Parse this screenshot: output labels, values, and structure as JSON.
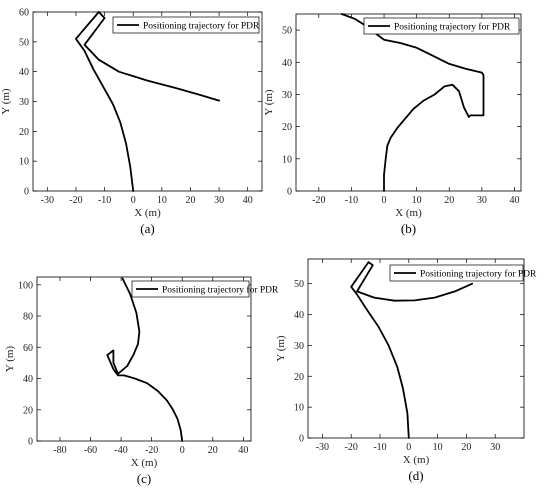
{
  "chart_data": [
    {
      "panel": "(a)",
      "type": "line",
      "xlabel": "X (m)",
      "ylabel": "Y (m)",
      "xlim": [
        -35,
        45
      ],
      "ylim": [
        0,
        60
      ],
      "xticks": [
        -30,
        -20,
        -10,
        0,
        10,
        20,
        30,
        40
      ],
      "yticks": [
        0,
        10,
        20,
        30,
        40,
        50,
        60
      ],
      "legend": {
        "position": "top-right",
        "entries": [
          "Positioning trajectory for PDR"
        ]
      },
      "series": [
        {
          "name": "Positioning trajectory for PDR",
          "x": [
            0,
            -1,
            -2.5,
            -4.5,
            -7,
            -10.5,
            -14,
            -17,
            -20,
            -12,
            -10,
            -17,
            -12,
            -5,
            5,
            15,
            23,
            30
          ],
          "y": [
            0,
            8,
            16,
            23,
            29,
            35,
            41,
            47,
            51,
            60,
            58,
            49,
            44,
            40,
            37,
            34.5,
            32.3,
            30.3
          ]
        }
      ]
    },
    {
      "panel": "(b)",
      "type": "line",
      "xlabel": "X (m)",
      "ylabel": "Y (m)",
      "xlim": [
        -27,
        42
      ],
      "ylim": [
        0,
        55
      ],
      "xticks": [
        -20,
        -10,
        0,
        10,
        20,
        30,
        40
      ],
      "yticks": [
        0,
        10,
        20,
        30,
        40,
        50
      ],
      "legend": {
        "position": "top-right",
        "entries": [
          "Positioning trajectory for PDR"
        ]
      },
      "series": [
        {
          "name": "Positioning trajectory for PDR",
          "x": [
            0,
            0,
            0.5,
            1,
            2,
            4,
            6.5,
            9,
            12,
            15.5,
            18.5,
            21,
            23,
            24.5,
            26,
            26.5,
            30.5,
            30.5,
            30.5,
            30,
            25,
            20,
            15,
            10,
            5,
            0,
            -2,
            -5,
            -9,
            -13
          ],
          "y": [
            0,
            5,
            10,
            14,
            16.5,
            19.5,
            22.5,
            25.5,
            28,
            30,
            32.5,
            33,
            31,
            26,
            23,
            23.5,
            23.5,
            30,
            36,
            36.8,
            38,
            39.5,
            42,
            44.5,
            46,
            47,
            48.5,
            51,
            53.5,
            55
          ]
        }
      ]
    },
    {
      "panel": "(c)",
      "type": "line",
      "xlabel": "X (m)",
      "ylabel": "Y (m)",
      "xlim": [
        -95,
        45
      ],
      "ylim": [
        0,
        105
      ],
      "xticks": [
        -80,
        -60,
        -40,
        -20,
        0,
        20,
        40
      ],
      "yticks": [
        0,
        20,
        40,
        60,
        80,
        100
      ],
      "legend": {
        "position": "top-right",
        "entries": [
          "Positioning trajectory for PDR"
        ]
      },
      "series": [
        {
          "name": "Positioning trajectory for PDR",
          "x": [
            0,
            -1,
            -3,
            -6,
            -10,
            -16,
            -23,
            -31,
            -38,
            -42,
            -45,
            -49,
            -45,
            -45,
            -42,
            -36,
            -32,
            -29,
            -28,
            -30,
            -34,
            -39
          ],
          "y": [
            0,
            7,
            14,
            20,
            26,
            32,
            37,
            40,
            42,
            42,
            46,
            55,
            58,
            50,
            43,
            48,
            55,
            62,
            70,
            82,
            94,
            104
          ]
        }
      ]
    },
    {
      "panel": "(d)",
      "type": "line",
      "xlabel": "X (m)",
      "ylabel": "Y (m)",
      "xlim": [
        -35,
        40
      ],
      "ylim": [
        0,
        58
      ],
      "xticks": [
        -30,
        -20,
        -10,
        0,
        10,
        20,
        30
      ],
      "yticks": [
        0,
        10,
        20,
        30,
        40,
        50
      ],
      "legend": {
        "position": "top-right",
        "entries": [
          "Positioning trajectory for PDR"
        ]
      },
      "series": [
        {
          "name": "Positioning trajectory for PDR",
          "x": [
            0,
            -0.5,
            -2,
            -4,
            -7,
            -10.5,
            -14.5,
            -18,
            -20,
            -14,
            -12.5,
            -18,
            -12,
            -5,
            2,
            9,
            16,
            22
          ],
          "y": [
            0,
            8,
            16,
            23,
            30,
            36,
            41.5,
            46.5,
            49,
            57,
            56,
            47.5,
            45.5,
            44.5,
            44.6,
            45.5,
            47.5,
            50
          ]
        }
      ]
    }
  ]
}
